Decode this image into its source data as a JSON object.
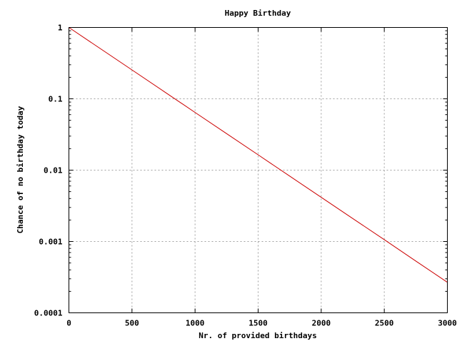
{
  "chart_data": {
    "type": "line",
    "title": "Happy Birthday",
    "xlabel": "Nr. of provided birthdays",
    "ylabel": "Chance of no birthday today",
    "xlim": [
      0,
      3000
    ],
    "ylim": [
      0.0001,
      1
    ],
    "yscale": "log",
    "grid": true,
    "x_ticks": [
      0,
      500,
      1000,
      1500,
      2000,
      2500,
      3000
    ],
    "x_tick_labels": [
      "0",
      "500",
      "1000",
      "1500",
      "2000",
      "2500",
      "3000"
    ],
    "y_ticks": [
      1,
      0.1,
      0.01,
      0.001,
      0.0001
    ],
    "y_tick_labels": [
      "1",
      "0.1",
      "0.01",
      "0.001",
      "0.0001"
    ],
    "series": [
      {
        "color": "#cc0000",
        "x": [
          0,
          250,
          500,
          750,
          1000,
          1250,
          1500,
          1750,
          2000,
          2250,
          2500,
          2750,
          3000
        ],
        "y": [
          1,
          0.504,
          0.254,
          0.128,
          0.0644,
          0.0325,
          0.0164,
          0.00825,
          0.00416,
          0.0021,
          0.00106,
          0.000532,
          0.000268
        ]
      }
    ]
  }
}
